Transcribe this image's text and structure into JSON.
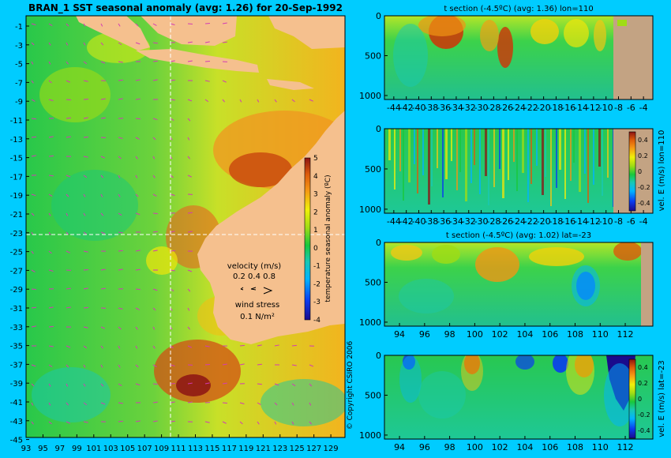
{
  "colors": {
    "background": "#00ccff",
    "land": "#f5c08e",
    "land_section": "#c3a383",
    "scale": [
      "#1a0a8c",
      "#0a3cf0",
      "#00b4ff",
      "#18c8b4",
      "#18c83c",
      "#a0dc14",
      "#f0f00a",
      "#f59614",
      "#dc5a0a",
      "#8c1414"
    ]
  },
  "main_map": {
    "title": "BRAN_1  SST seasonal anomaly  (avg: 1.26) for 20-Sep-1992",
    "lat_ticks": [
      "-1",
      "-3",
      "-5",
      "-7",
      "-9",
      "-11",
      "-13",
      "-15",
      "-17",
      "-19",
      "-21",
      "-23",
      "-25",
      "-27",
      "-29",
      "-31",
      "-33",
      "-35",
      "-37",
      "-39",
      "-41",
      "-43",
      "-45"
    ],
    "lon_ticks": [
      "93",
      "95",
      "97",
      "99",
      "101",
      "103",
      "105",
      "107",
      "109",
      "111",
      "113",
      "115",
      "117",
      "119",
      "121",
      "123",
      "125",
      "127",
      "129"
    ],
    "colorbar": {
      "label": "temperature seasonal anomaly (ºC)",
      "ticks": [
        "5",
        "4",
        "3",
        "2",
        "1",
        "0",
        "-1",
        "-2",
        "-3",
        "-4"
      ],
      "range": [
        -4,
        5
      ]
    },
    "velocity_legend": {
      "title": "velocity (m/s)",
      "scale": "0.2 0.4 0.8"
    },
    "wind_legend": {
      "title": "wind stress",
      "scale": "0.1 N/m²"
    },
    "section_lines": {
      "lon": 110,
      "lat": -23
    },
    "copyright": "© Copyright CSIRO 2006"
  },
  "chart_data": [
    {
      "type": "heatmap",
      "title": "t section (-4.5ºC) (avg: 1.36) lon=110",
      "x_ticks": [
        "-44",
        "-42",
        "-40",
        "-38",
        "-36",
        "-34",
        "-32",
        "-30",
        "-28",
        "-26",
        "-24",
        "-22",
        "-20",
        "-18",
        "-16",
        "-14",
        "-12",
        "-10",
        "-8",
        "-6",
        "-4"
      ],
      "xlim": [
        -45.5,
        -2.5
      ],
      "y_ticks": [
        "0",
        "500",
        "1000"
      ],
      "ylim": [
        0,
        1050
      ]
    },
    {
      "type": "heatmap",
      "title": "",
      "x_ticks": [
        "-44",
        "-42",
        "-40",
        "-38",
        "-36",
        "-34",
        "-32",
        "-30",
        "-28",
        "-26",
        "-24",
        "-22",
        "-20",
        "-18",
        "-16",
        "-14",
        "-12",
        "-10",
        "-8",
        "-6",
        "-4"
      ],
      "xlim": [
        -45.5,
        -2.5
      ],
      "y_ticks": [
        "0",
        "500",
        "1000"
      ],
      "ylim": [
        0,
        1050
      ],
      "colorbar": {
        "label": "vel. E (m/s) lon=110",
        "ticks": [
          "0.4",
          "0.2",
          "0",
          "-0.2",
          "-0.4"
        ],
        "range": [
          -0.5,
          0.5
        ]
      }
    },
    {
      "type": "heatmap",
      "title": "t section (-4.5ºC) (avg: 1.02) lat=-23",
      "x_ticks": [
        "94",
        "96",
        "98",
        "100",
        "102",
        "104",
        "106",
        "108",
        "110",
        "112"
      ],
      "xlim": [
        92.8,
        114.2
      ],
      "y_ticks": [
        "0",
        "500",
        "1000"
      ],
      "ylim": [
        0,
        1050
      ]
    },
    {
      "type": "heatmap",
      "title": "",
      "x_ticks": [
        "94",
        "96",
        "98",
        "100",
        "102",
        "104",
        "106",
        "108",
        "110",
        "112"
      ],
      "xlim": [
        92.8,
        114.2
      ],
      "y_ticks": [
        "0",
        "500",
        "1000"
      ],
      "ylim": [
        0,
        1050
      ],
      "colorbar": {
        "label": "vel. E (m/s) lat=-23",
        "ticks": [
          "0.4",
          "0.2",
          "0",
          "-0.2",
          "-0.4"
        ],
        "range": [
          -0.5,
          0.5
        ]
      }
    }
  ]
}
